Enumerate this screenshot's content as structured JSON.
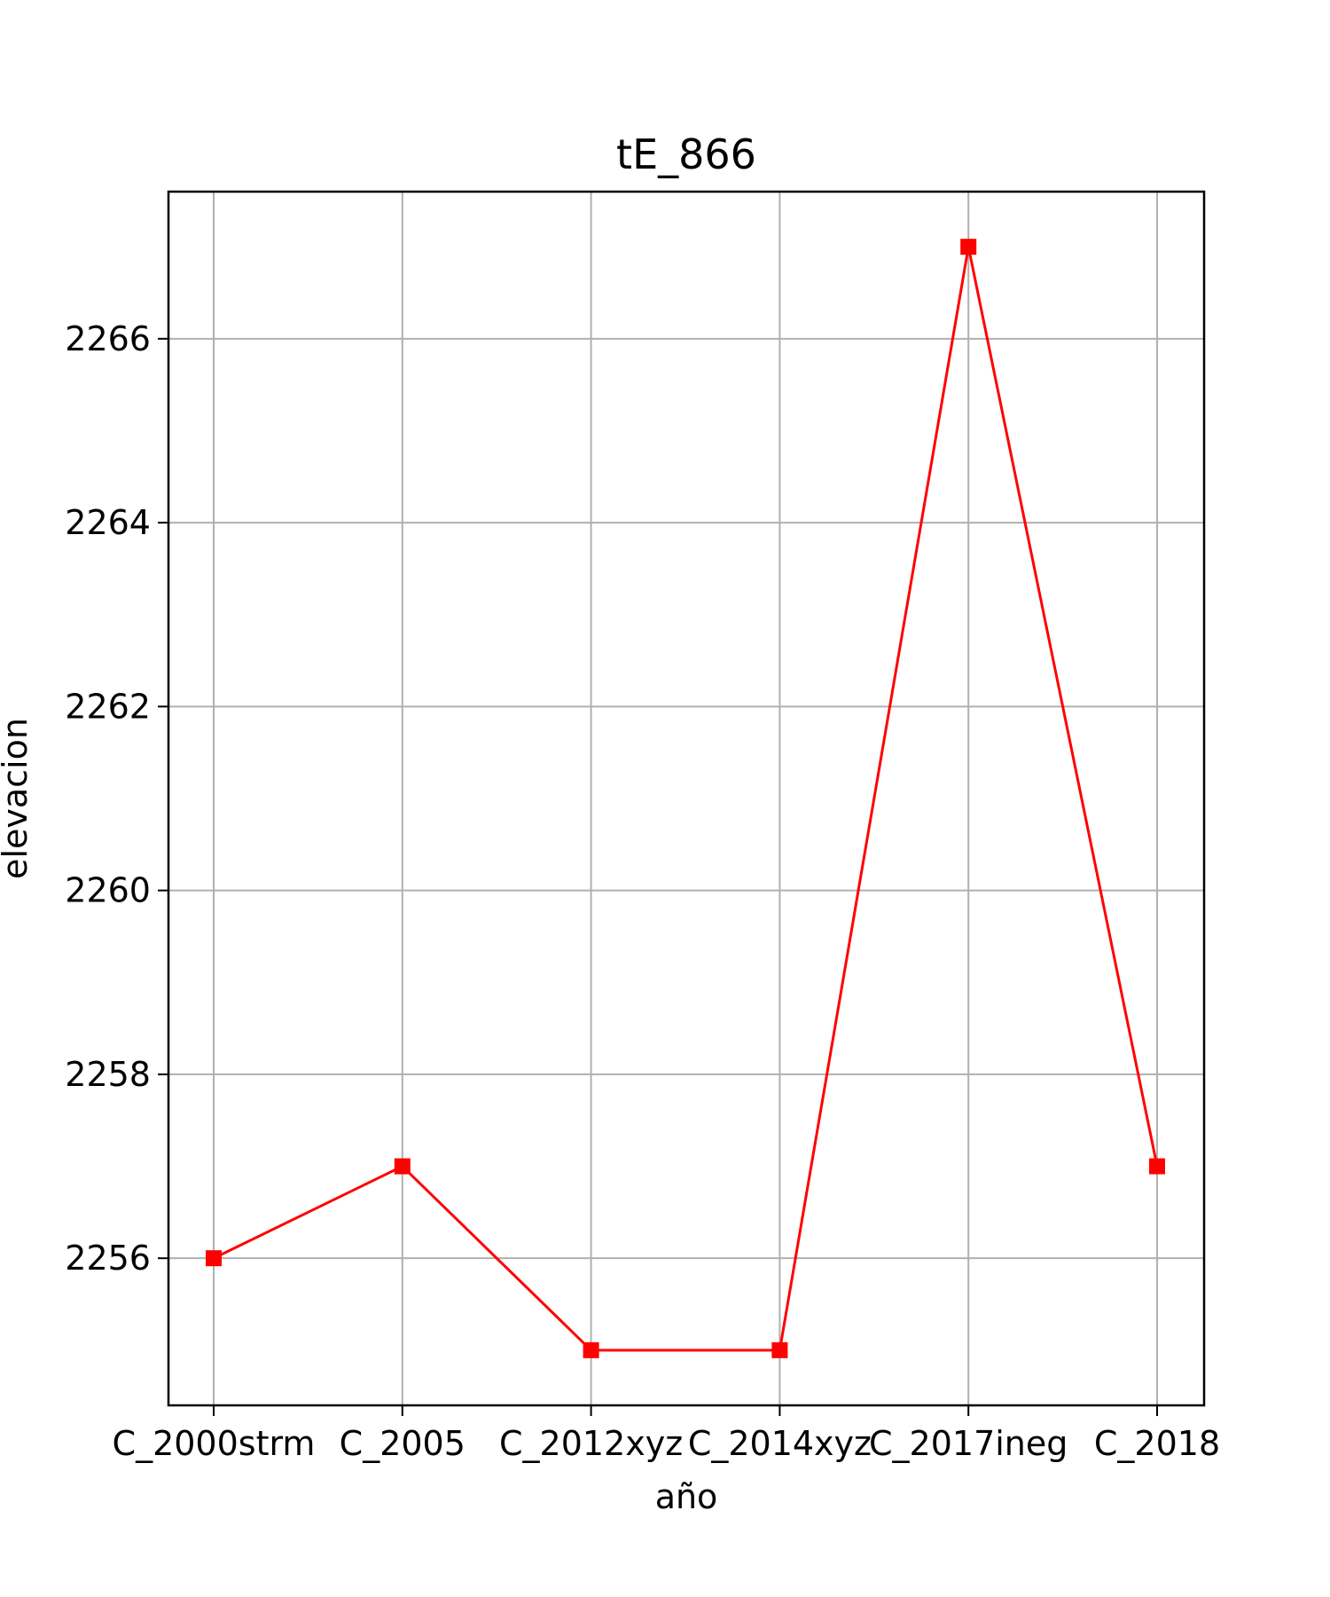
{
  "chart_data": {
    "type": "line",
    "title": "tE_866",
    "xlabel": "año",
    "ylabel": "elevacion",
    "categories": [
      "C_2000strm",
      "C_2005",
      "C_2012xyz",
      "C_2014xyz",
      "C_2017ineg",
      "C_2018"
    ],
    "series": [
      {
        "values": [
          2256,
          2257,
          2255,
          2255,
          2267,
          2257
        ],
        "color": "#ff0000",
        "marker": "square"
      }
    ],
    "ylim": [
      2254.4,
      2267.6
    ],
    "yticks": [
      2256,
      2258,
      2260,
      2262,
      2264,
      2266
    ],
    "grid": true,
    "grid_color": "#b0b0b0",
    "legend": false
  }
}
